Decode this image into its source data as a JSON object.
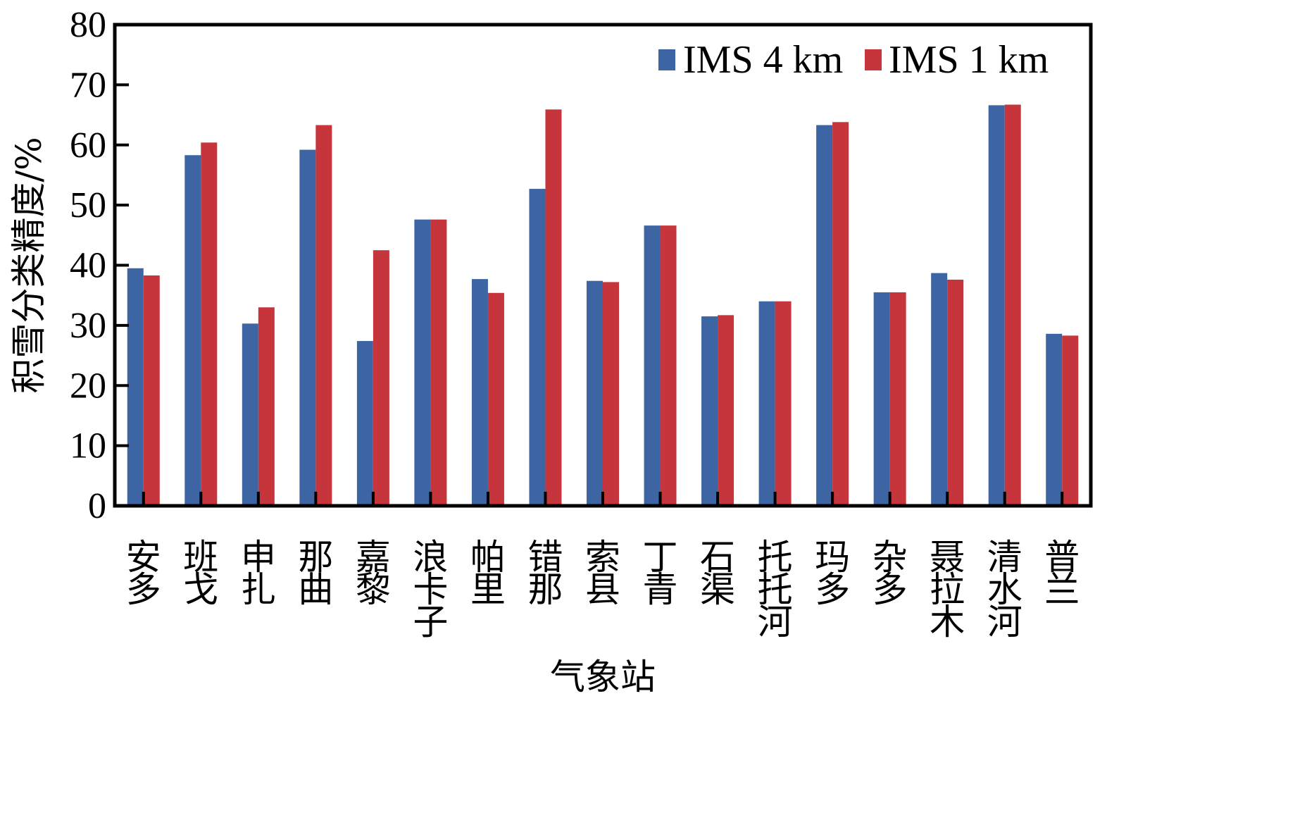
{
  "chart_data": {
    "type": "bar",
    "xlabel": "气象站",
    "ylabel": "积雪分类精度/%",
    "ylim": [
      0,
      80
    ],
    "yticks": [
      "0",
      "10",
      "20",
      "30",
      "40",
      "50",
      "60",
      "70",
      "80"
    ],
    "grid": false,
    "legend_position": "top-right",
    "categories": [
      "安多",
      "班戈",
      "申扎",
      "那曲",
      "嘉黎",
      "浪卡子",
      "帕里",
      "错那",
      "索县",
      "丁青",
      "石渠",
      "托托河",
      "玛多",
      "杂多",
      "聂拉木",
      "清水河",
      "普兰"
    ],
    "series": [
      {
        "name": "IMS 4 km",
        "color": "#3d64a3",
        "values": [
          39.5,
          58.3,
          30.3,
          59.2,
          27.4,
          47.6,
          37.7,
          52.7,
          37.4,
          46.6,
          31.5,
          34.0,
          63.3,
          35.5,
          38.7,
          66.6,
          28.6
        ]
      },
      {
        "name": "IMS 1 km",
        "color": "#c5353b",
        "values": [
          38.3,
          60.4,
          33.0,
          63.3,
          42.5,
          47.6,
          35.4,
          65.9,
          37.2,
          46.6,
          31.7,
          34.0,
          63.8,
          35.5,
          37.6,
          66.7,
          28.3
        ]
      }
    ]
  }
}
